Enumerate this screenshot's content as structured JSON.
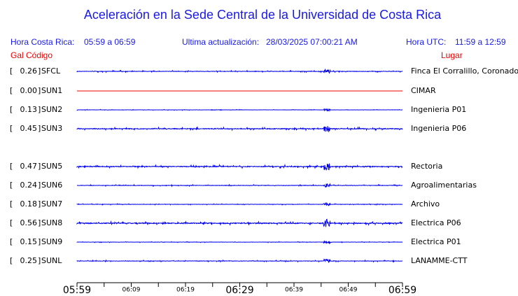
{
  "title": "Aceleración en la Sede Central de la Universidad de Costa Rica",
  "header": {
    "local_label": "Hora Costa Rica:",
    "local_range": "05:59 a 06:59",
    "update_label": "Ultima actualización:",
    "update_time": "28/03/2025 07:00:21 AM",
    "utc_label": "Hora UTC:",
    "utc_range": "11:59 a 12:59"
  },
  "columns": {
    "gal": "Gal",
    "code": "Código",
    "place": "Lugar"
  },
  "stations": [
    {
      "gal": "0.26",
      "code": "SFCL",
      "place": "Finca El Corralillo, Coronado",
      "color": "#0000ee"
    },
    {
      "gal": "0.00",
      "code": "SUN1",
      "place": "CIMAR",
      "color": "#ee0000"
    },
    {
      "gal": "0.13",
      "code": "SUN2",
      "place": "Ingenieria P01",
      "color": "#0000ee"
    },
    {
      "gal": "0.45",
      "code": "SUN3",
      "place": "Ingenieria P06",
      "color": "#0000ee"
    },
    {
      "gal": "0.47",
      "code": "SUN5",
      "place": "Rectoria",
      "color": "#0000ee"
    },
    {
      "gal": "0.24",
      "code": "SUN6",
      "place": "Agroalimentarias",
      "color": "#0000ee"
    },
    {
      "gal": "0.18",
      "code": "SUN7",
      "place": "Archivo",
      "color": "#0000ee"
    },
    {
      "gal": "0.56",
      "code": "SUN8",
      "place": "Electrica P06",
      "color": "#0000ee"
    },
    {
      "gal": "0.15",
      "code": "SUN9",
      "place": "Electrica P01",
      "color": "#0000ee"
    },
    {
      "gal": "0.25",
      "code": "SUNL",
      "place": "LANAMME-CTT",
      "color": "#0000ee"
    }
  ],
  "time_axis": [
    "05:59",
    "06:09",
    "06:19",
    "06:29",
    "06:39",
    "06:49",
    "06:59"
  ]
}
